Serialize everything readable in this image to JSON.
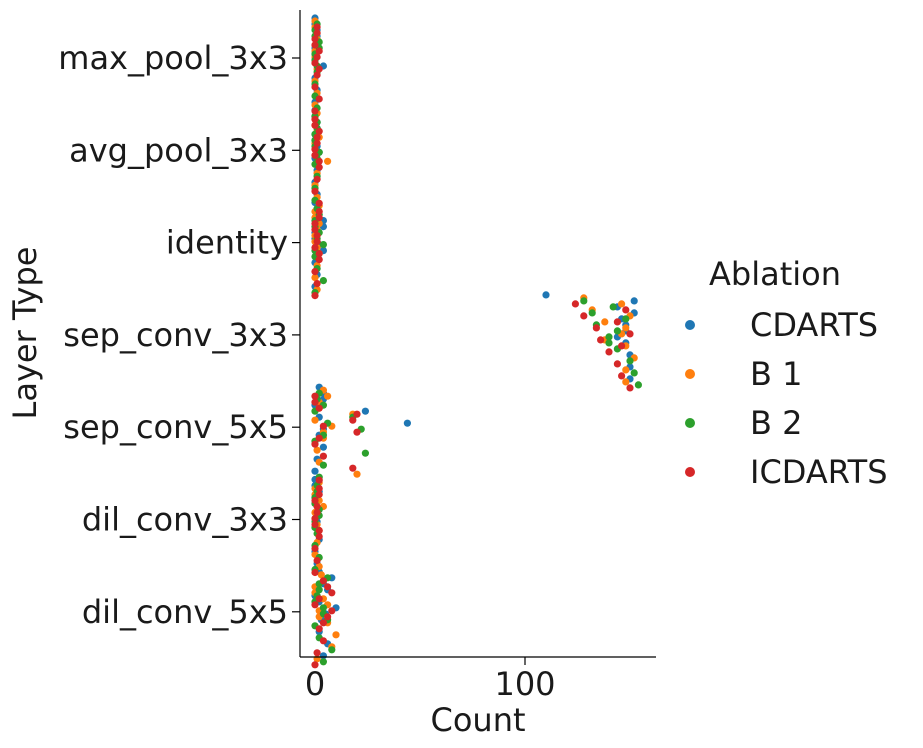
{
  "chart_data": {
    "type": "scatter",
    "subtype": "swarm",
    "title": "",
    "xlabel": "Count",
    "ylabel": "Layer Type",
    "xlim": [
      -6,
      160
    ],
    "x_ticks": [
      0,
      100
    ],
    "categories": [
      "max_pool_3x3",
      "avg_pool_3x3",
      "identity",
      "sep_conv_3x3",
      "sep_conv_5x5",
      "dil_conv_3x3",
      "dil_conv_5x5"
    ],
    "grid": false,
    "legend": {
      "title": "Ablation",
      "position": "right"
    },
    "series": [
      {
        "name": "CDARTS",
        "color": "#1f77b4",
        "values": {
          "max_pool_3x3": [
            0,
            1,
            1,
            0,
            4,
            0,
            1,
            0,
            0,
            1,
            0,
            0
          ],
          "avg_pool_3x3": [
            0,
            1,
            0,
            1,
            0,
            1,
            0,
            1,
            0,
            1,
            0,
            2
          ],
          "identity": [
            0,
            1,
            4,
            0,
            4,
            0,
            1,
            0,
            1,
            4,
            0,
            2
          ],
          "sep_conv_3x3": [
            110,
            144,
            146,
            148,
            148,
            150,
            150,
            150,
            152,
            152,
            148,
            144
          ],
          "sep_conv_5x5": [
            2,
            4,
            24,
            44,
            2,
            4,
            1,
            0,
            4,
            0,
            2,
            4
          ],
          "dil_conv_3x3": [
            0,
            2,
            0,
            1,
            0,
            2,
            0,
            1,
            0,
            0,
            2,
            1
          ],
          "dil_conv_5x5": [
            2,
            4,
            0,
            10,
            3,
            2,
            6,
            4,
            8,
            6,
            2,
            5
          ]
        }
      },
      {
        "name": "B 1",
        "color": "#ff7f0e",
        "values": {
          "max_pool_3x3": [
            0,
            1,
            0,
            0,
            1,
            0,
            1,
            0,
            0,
            1,
            0,
            0
          ],
          "avg_pool_3x3": [
            1,
            0,
            2,
            0,
            6,
            1,
            0,
            1,
            0,
            1,
            0,
            0
          ],
          "identity": [
            2,
            0,
            1,
            0,
            2,
            1,
            0,
            1,
            0,
            2,
            0,
            1
          ],
          "sep_conv_3x3": [
            128,
            132,
            138,
            146,
            148,
            152,
            148,
            148,
            146,
            150,
            148,
            138
          ],
          "sep_conv_5x5": [
            4,
            2,
            18,
            8,
            4,
            1,
            2,
            20,
            6,
            2,
            0,
            4
          ],
          "dil_conv_3x3": [
            2,
            0,
            4,
            0,
            2,
            1,
            0,
            2,
            0,
            2,
            0,
            1
          ],
          "dil_conv_5x5": [
            3,
            0,
            4,
            2,
            6,
            10,
            8,
            1,
            4,
            0,
            6,
            2
          ]
        }
      },
      {
        "name": "B 2",
        "color": "#2ca02c",
        "values": {
          "max_pool_3x3": [
            1,
            0,
            2,
            0,
            1,
            0,
            0,
            1,
            0,
            2,
            0,
            1
          ],
          "avg_pool_3x3": [
            0,
            1,
            0,
            2,
            0,
            1,
            0,
            0,
            1,
            0,
            0,
            1
          ],
          "identity": [
            1,
            0,
            2,
            4,
            0,
            1,
            4,
            0,
            2,
            0,
            1,
            0
          ],
          "sep_conv_3x3": [
            128,
            132,
            134,
            140,
            144,
            150,
            152,
            154,
            142,
            148,
            144,
            140
          ],
          "sep_conv_5x5": [
            2,
            4,
            18,
            22,
            0,
            24,
            4,
            2,
            1,
            0,
            6,
            4
          ],
          "dil_conv_3x3": [
            1,
            0,
            2,
            0,
            1,
            0,
            2,
            0,
            1,
            0,
            2,
            0
          ],
          "dil_conv_5x5": [
            6,
            2,
            0,
            4,
            0,
            2,
            8,
            4,
            2,
            1,
            4,
            6
          ]
        }
      },
      {
        "name": "ICDARTS",
        "color": "#d62728",
        "values": {
          "max_pool_3x3": [
            1,
            0,
            2,
            0,
            1,
            0,
            2,
            0,
            1,
            0,
            1,
            2
          ],
          "avg_pool_3x3": [
            0,
            2,
            1,
            0,
            2,
            1,
            0,
            2,
            0,
            1,
            0,
            2
          ],
          "identity": [
            2,
            0,
            1,
            0,
            2,
            0,
            1,
            0,
            2,
            0,
            1,
            2
          ],
          "sep_conv_3x3": [
            124,
            128,
            134,
            136,
            140,
            144,
            146,
            150,
            148,
            144,
            150,
            146
          ],
          "sep_conv_5x5": [
            0,
            2,
            18,
            20,
            0,
            4,
            18,
            2,
            0,
            20,
            4,
            2
          ],
          "dil_conv_3x3": [
            2,
            0,
            1,
            0,
            2,
            0,
            1,
            0,
            2,
            1,
            0,
            2
          ],
          "dil_conv_5x5": [
            4,
            8,
            0,
            6,
            2,
            4,
            1,
            0,
            6,
            2,
            8,
            4
          ]
        }
      }
    ]
  }
}
